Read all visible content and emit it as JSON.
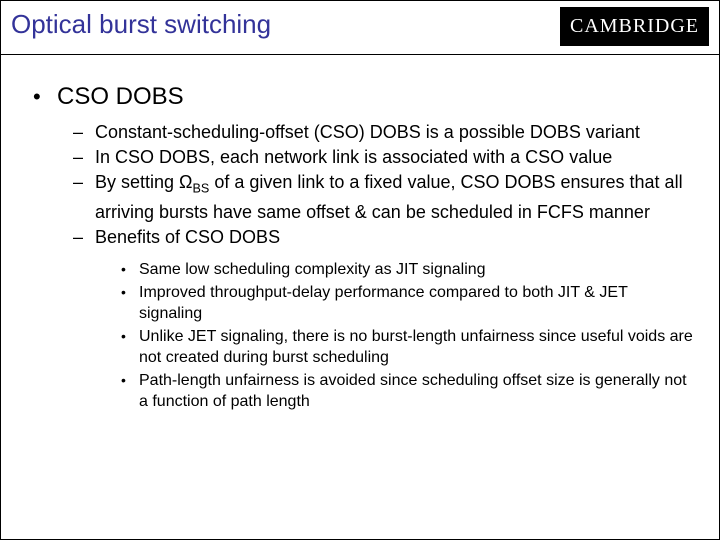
{
  "title": "Optical burst switching",
  "logo": "CAMBRIDGE",
  "colors": {
    "title_color": "#333399",
    "text_color": "#000000",
    "logo_bg": "#000000",
    "logo_fg": "#ffffff",
    "page_bg": "#ffffff",
    "rule_color": "#000000"
  },
  "typography": {
    "body_font": "Comic Sans MS",
    "logo_font": "Georgia",
    "title_fontsize": 26,
    "lvl1_fontsize": 24,
    "lvl2_fontsize": 18,
    "lvl3_fontsize": 16
  },
  "bullets": {
    "lvl1_label": "CSO DOBS",
    "lvl2": [
      "Constant-scheduling-offset (CSO) DOBS is a possible DOBS variant",
      "In CSO DOBS, each network link is associated with a CSO value",
      "By setting Ω_BS of a given link to a fixed value, CSO DOBS ensures that all arriving bursts have same offset & can be scheduled in FCFS manner",
      "Benefits of CSO DOBS"
    ],
    "lvl2_item2_prefix": "By setting ",
    "lvl2_item2_symbol": "Ω",
    "lvl2_item2_subscript": "BS",
    "lvl2_item2_suffix": " of a given link to a fixed value, CSO DOBS ensures that all arriving bursts have same offset & can be scheduled in FCFS manner",
    "lvl3": [
      "Same low scheduling complexity as JIT signaling",
      "Improved throughput-delay performance compared to both JIT & JET signaling",
      "Unlike JET signaling, there is no burst-length unfairness since useful voids are not created during burst scheduling",
      "Path-length unfairness is avoided since scheduling offset size is generally not a function of path length"
    ]
  }
}
